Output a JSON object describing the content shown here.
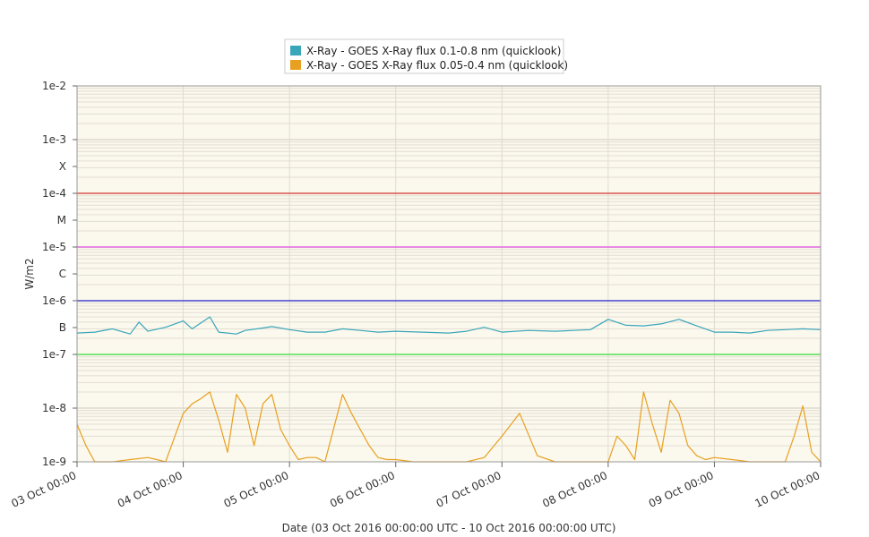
{
  "chart_data": {
    "type": "line",
    "title": "",
    "xlabel": "Date (03 Oct 2016 00:00:00 UTC - 10 Oct 2016 00:00:00 UTC)",
    "ylabel": "W/m2",
    "y_scale": "log",
    "ylim": [
      1e-09,
      0.01
    ],
    "xlim": [
      "03 Oct 00:00",
      "10 Oct 00:00"
    ],
    "x_tick_labels": [
      "03 Oct 00:00",
      "04 Oct 00:00",
      "05 Oct 00:00",
      "06 Oct 00:00",
      "07 Oct 00:00",
      "08 Oct 00:00",
      "09 Oct 00:00",
      "10 Oct 00:00"
    ],
    "y_ticks": [
      {
        "label": "1e-2",
        "value": 0.01
      },
      {
        "label": "1e-3",
        "value": 0.001
      },
      {
        "label": "X",
        "value": 0.000316
      },
      {
        "label": "1e-4",
        "value": 0.0001
      },
      {
        "label": "M",
        "value": 3.16e-05
      },
      {
        "label": "1e-5",
        "value": 1e-05
      },
      {
        "label": "C",
        "value": 3.16e-06
      },
      {
        "label": "1e-6",
        "value": 1e-06
      },
      {
        "label": "B",
        "value": 3.16e-07
      },
      {
        "label": "1e-7",
        "value": 1e-07
      },
      {
        "label": "1e-8",
        "value": 1e-08
      },
      {
        "label": "1e-9",
        "value": 1e-09
      }
    ],
    "threshold_lines": [
      {
        "value": 0.0001,
        "color": "#d9534f"
      },
      {
        "value": 1e-05,
        "color": "#e066e0"
      },
      {
        "value": 1e-06,
        "color": "#4444cc"
      },
      {
        "value": 1e-07,
        "color": "#55dd55"
      }
    ],
    "grid": true,
    "legend_position": "top-center",
    "series": [
      {
        "name": "X-Ray - GOES X-Ray flux 0.1-0.8 nm (quicklook)",
        "color": "#3aa6b9",
        "x": [
          "03 Oct 00:00",
          "03 Oct 04:00",
          "03 Oct 08:00",
          "03 Oct 12:00",
          "03 Oct 14:00",
          "03 Oct 16:00",
          "03 Oct 20:00",
          "04 Oct 00:00",
          "04 Oct 02:00",
          "04 Oct 06:00",
          "04 Oct 08:00",
          "04 Oct 12:00",
          "04 Oct 14:00",
          "04 Oct 18:00",
          "04 Oct 20:00",
          "05 Oct 00:00",
          "05 Oct 04:00",
          "05 Oct 08:00",
          "05 Oct 12:00",
          "05 Oct 16:00",
          "05 Oct 20:00",
          "06 Oct 00:00",
          "06 Oct 06:00",
          "06 Oct 12:00",
          "06 Oct 16:00",
          "06 Oct 20:00",
          "07 Oct 00:00",
          "07 Oct 06:00",
          "07 Oct 12:00",
          "07 Oct 16:00",
          "07 Oct 20:00",
          "08 Oct 00:00",
          "08 Oct 04:00",
          "08 Oct 08:00",
          "08 Oct 12:00",
          "08 Oct 16:00",
          "08 Oct 20:00",
          "09 Oct 00:00",
          "09 Oct 04:00",
          "09 Oct 08:00",
          "09 Oct 12:00",
          "09 Oct 16:00",
          "09 Oct 20:00",
          "10 Oct 00:00"
        ],
        "values": [
          2.5e-07,
          2.6e-07,
          3e-07,
          2.4e-07,
          4e-07,
          2.7e-07,
          3.2e-07,
          4.2e-07,
          3e-07,
          5e-07,
          2.6e-07,
          2.4e-07,
          2.8e-07,
          3.1e-07,
          3.3e-07,
          2.9e-07,
          2.6e-07,
          2.6e-07,
          3e-07,
          2.8e-07,
          2.6e-07,
          2.7e-07,
          2.6e-07,
          2.5e-07,
          2.7e-07,
          3.2e-07,
          2.6e-07,
          2.8e-07,
          2.7e-07,
          2.8e-07,
          2.9e-07,
          4.5e-07,
          3.5e-07,
          3.4e-07,
          3.7e-07,
          4.5e-07,
          3.4e-07,
          2.6e-07,
          2.6e-07,
          2.5e-07,
          2.8e-07,
          2.9e-07,
          3e-07,
          2.9e-07
        ]
      },
      {
        "name": "X-Ray - GOES X-Ray flux 0.05-0.4 nm (quicklook)",
        "color": "#e8a020",
        "x": [
          "03 Oct 00:00",
          "03 Oct 02:00",
          "03 Oct 04:00",
          "03 Oct 06:00",
          "03 Oct 08:00",
          "03 Oct 12:00",
          "03 Oct 16:00",
          "03 Oct 18:00",
          "03 Oct 20:00",
          "04 Oct 00:00",
          "04 Oct 02:00",
          "04 Oct 04:00",
          "04 Oct 06:00",
          "04 Oct 08:00",
          "04 Oct 10:00",
          "04 Oct 12:00",
          "04 Oct 14:00",
          "04 Oct 16:00",
          "04 Oct 18:00",
          "04 Oct 20:00",
          "04 Oct 22:00",
          "05 Oct 00:00",
          "05 Oct 02:00",
          "05 Oct 04:00",
          "05 Oct 06:00",
          "05 Oct 08:00",
          "05 Oct 12:00",
          "05 Oct 14:00",
          "05 Oct 16:00",
          "05 Oct 18:00",
          "05 Oct 20:00",
          "05 Oct 22:00",
          "06 Oct 00:00",
          "06 Oct 04:00",
          "06 Oct 08:00",
          "06 Oct 12:00",
          "06 Oct 16:00",
          "06 Oct 20:00",
          "07 Oct 00:00",
          "07 Oct 04:00",
          "07 Oct 08:00",
          "07 Oct 12:00",
          "07 Oct 16:00",
          "07 Oct 20:00",
          "08 Oct 00:00",
          "08 Oct 02:00",
          "08 Oct 04:00",
          "08 Oct 06:00",
          "08 Oct 08:00",
          "08 Oct 10:00",
          "08 Oct 12:00",
          "08 Oct 14:00",
          "08 Oct 16:00",
          "08 Oct 18:00",
          "08 Oct 20:00",
          "08 Oct 22:00",
          "09 Oct 00:00",
          "09 Oct 04:00",
          "09 Oct 08:00",
          "09 Oct 12:00",
          "09 Oct 14:00",
          "09 Oct 16:00",
          "09 Oct 18:00",
          "09 Oct 20:00",
          "09 Oct 22:00",
          "10 Oct 00:00"
        ],
        "values": [
          5e-09,
          2e-09,
          1e-09,
          1e-09,
          1e-09,
          1.1e-09,
          1.2e-09,
          1.1e-09,
          1e-09,
          8e-09,
          1.2e-08,
          1.5e-08,
          2e-08,
          6e-09,
          1.5e-09,
          1.8e-08,
          1e-08,
          2e-09,
          1.2e-08,
          1.8e-08,
          4e-09,
          2e-09,
          1.1e-09,
          1.2e-09,
          1.2e-09,
          1e-09,
          1.8e-08,
          8e-09,
          4e-09,
          2e-09,
          1.2e-09,
          1.1e-09,
          1.1e-09,
          1e-09,
          1e-09,
          1e-09,
          1e-09,
          1.2e-09,
          3e-09,
          8e-09,
          1.3e-09,
          1e-09,
          1e-09,
          1e-09,
          1e-09,
          3e-09,
          2e-09,
          1.1e-09,
          2e-08,
          5e-09,
          1.5e-09,
          1.4e-08,
          8e-09,
          2e-09,
          1.3e-09,
          1.1e-09,
          1.2e-09,
          1.1e-09,
          1e-09,
          1e-09,
          1e-09,
          1e-09,
          3e-09,
          1.1e-08,
          1.5e-09,
          1e-09
        ]
      }
    ]
  }
}
